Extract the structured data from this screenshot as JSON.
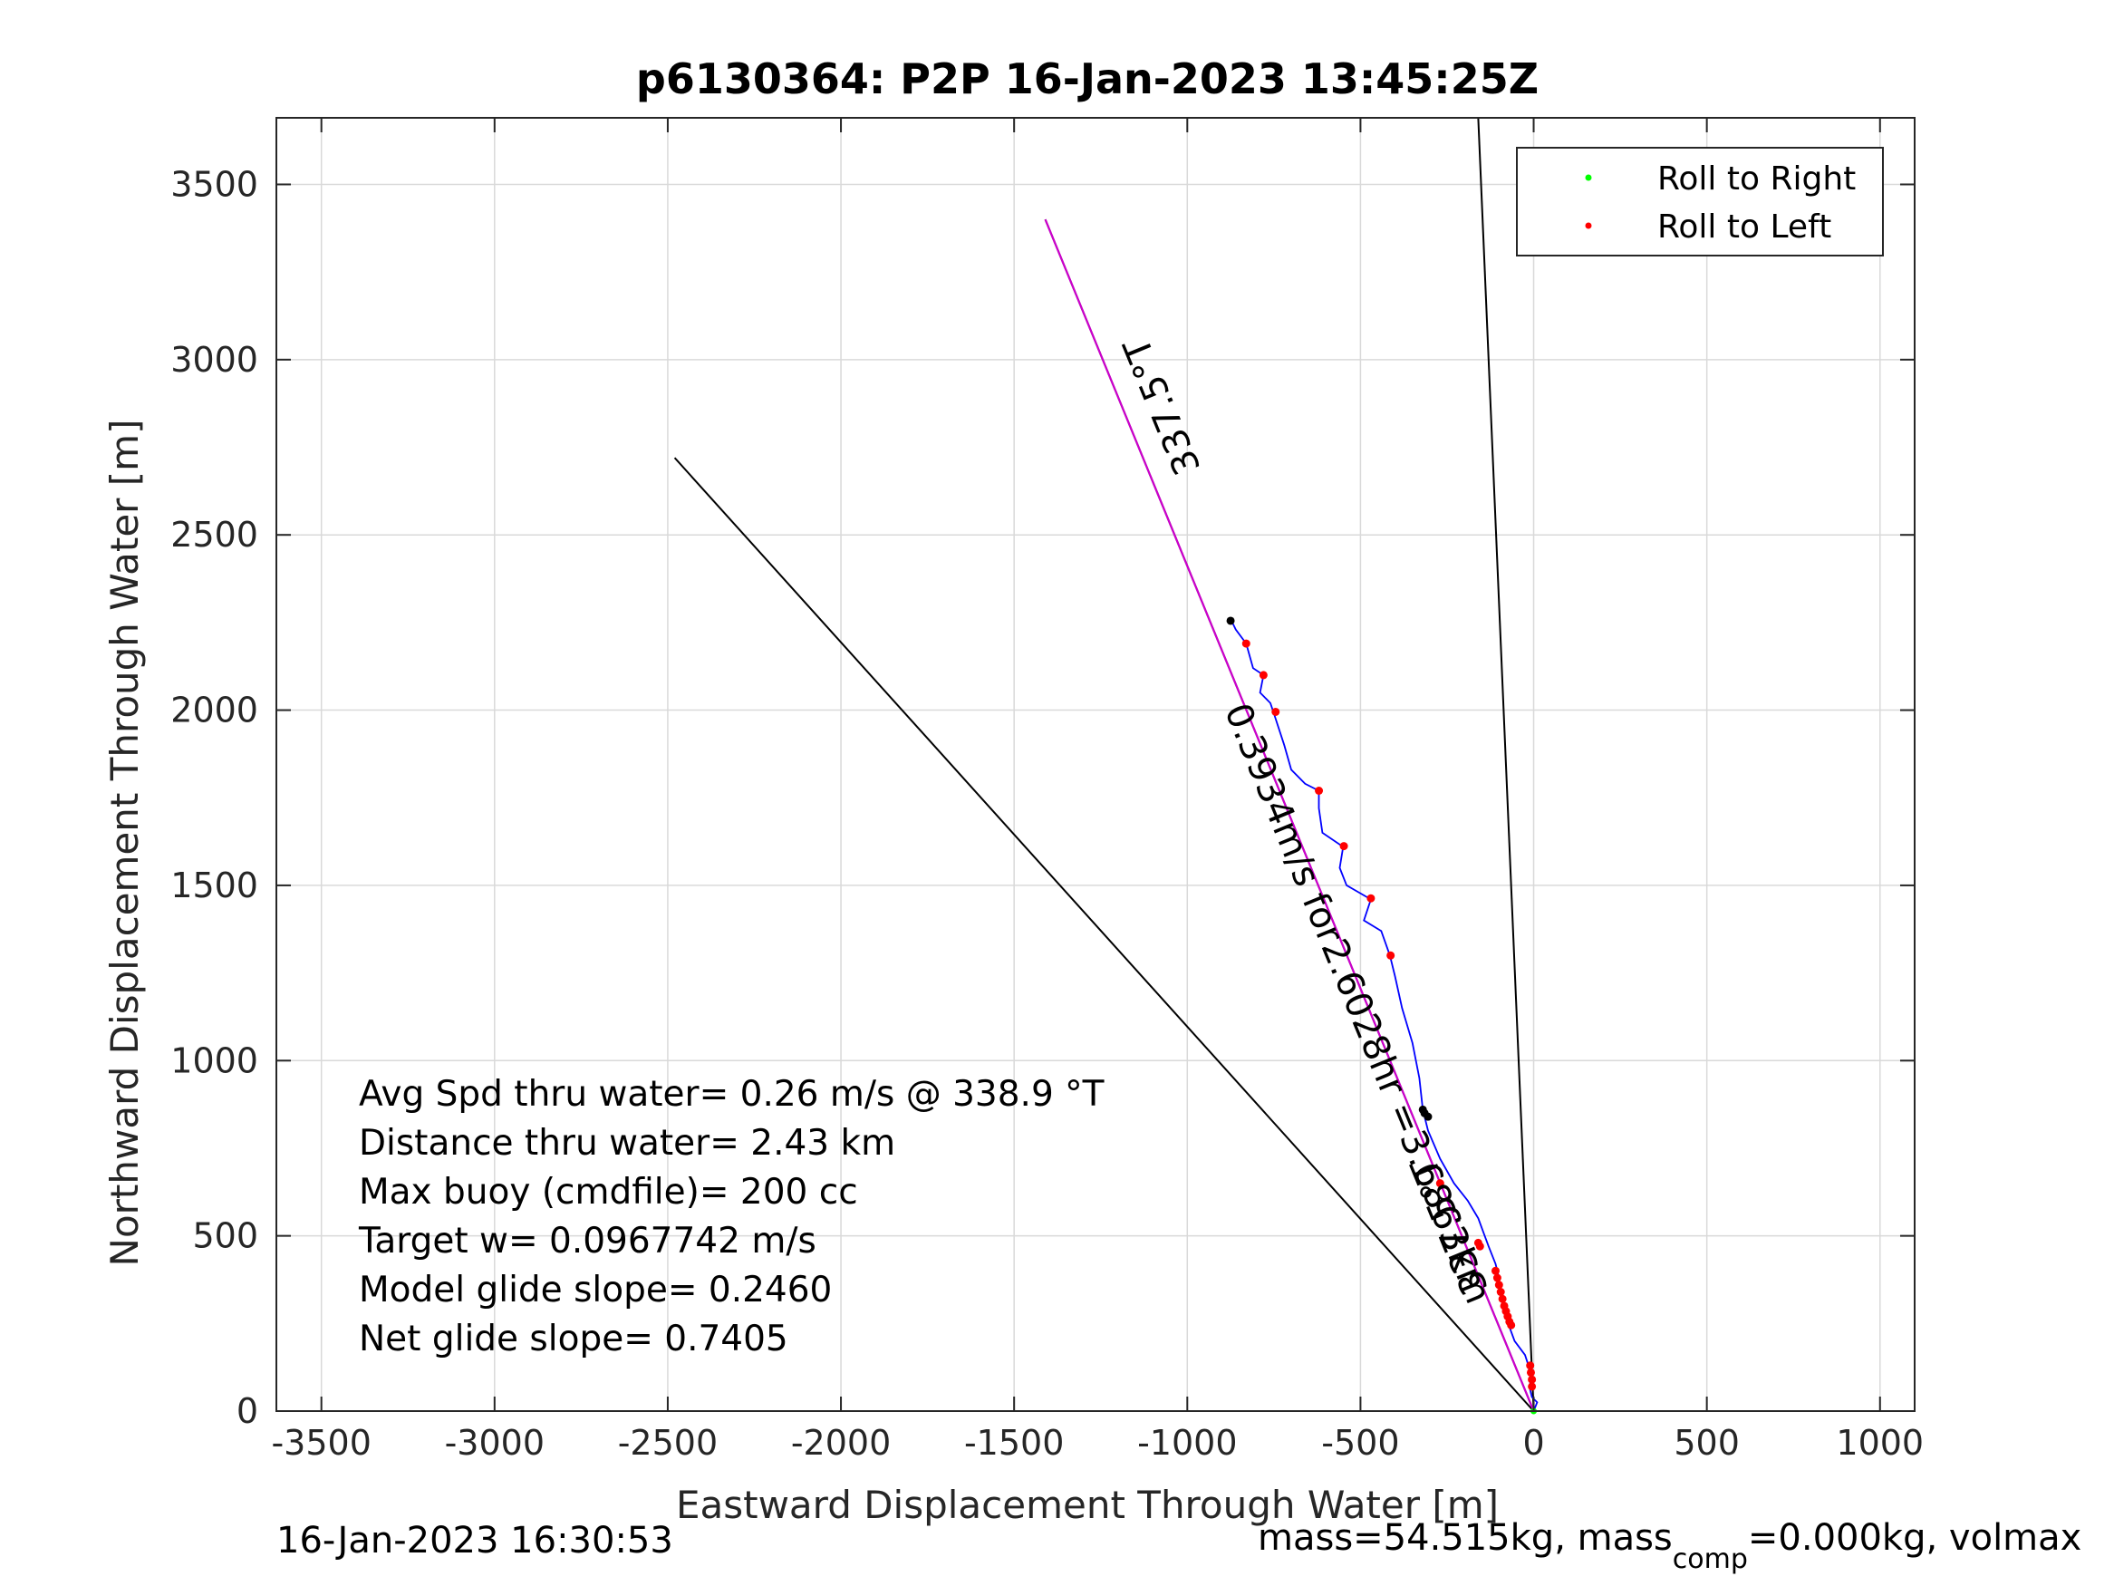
{
  "chart_data": {
    "type": "line",
    "title": "p6130364: P2P 16-Jan-2023 13:45:25Z",
    "xlabel": "Eastward Displacement Through Water [m]",
    "ylabel": "Northward Displacement Through Water [m]",
    "xlim": [
      -3630,
      1100
    ],
    "ylim": [
      0,
      3690
    ],
    "x_ticks": [
      -3500,
      -3000,
      -2500,
      -2000,
      -1500,
      -1000,
      -500,
      0,
      500,
      1000
    ],
    "y_ticks": [
      0,
      500,
      1000,
      1500,
      2000,
      2500,
      3000,
      3500
    ],
    "grid": true,
    "legend": {
      "placement": "top-right",
      "entries": [
        {
          "label": "Roll to Right",
          "color": "#00ff00"
        },
        {
          "label": "Roll to Left",
          "color": "#ff0000"
        }
      ]
    },
    "colors": {
      "track": "#0000ff",
      "course": "#cc00cc",
      "reference": "#000000",
      "dive_start": "#000000"
    },
    "reference_lines": [
      {
        "points": [
          [
            0,
            0
          ],
          [
            -2480,
            2720
          ]
        ]
      },
      {
        "points": [
          [
            0,
            0
          ],
          [
            -160,
            3690
          ]
        ]
      },
      {
        "points": [
          [
            0,
            0
          ],
          [
            -1410,
            3400
          ]
        ]
      }
    ],
    "course_line": {
      "points": [
        [
          0,
          0
        ],
        [
          -1410,
          3400
        ]
      ]
    },
    "track": [
      [
        0,
        0
      ],
      [
        10,
        25
      ],
      [
        -5,
        40
      ],
      [
        -10,
        60
      ],
      [
        -10,
        100
      ],
      [
        -15,
        130
      ],
      [
        -25,
        160
      ],
      [
        -55,
        200
      ],
      [
        -70,
        240
      ],
      [
        -80,
        280
      ],
      [
        -95,
        330
      ],
      [
        -100,
        380
      ],
      [
        -110,
        420
      ],
      [
        -130,
        470
      ],
      [
        -145,
        510
      ],
      [
        -160,
        550
      ],
      [
        -190,
        600
      ],
      [
        -230,
        650
      ],
      [
        -270,
        720
      ],
      [
        -305,
        800
      ],
      [
        -320,
        860
      ],
      [
        -330,
        950
      ],
      [
        -350,
        1050
      ],
      [
        -380,
        1150
      ],
      [
        -400,
        1240
      ],
      [
        -415,
        1300
      ],
      [
        -440,
        1370
      ],
      [
        -490,
        1400
      ],
      [
        -470,
        1460
      ],
      [
        -540,
        1500
      ],
      [
        -560,
        1550
      ],
      [
        -550,
        1610
      ],
      [
        -610,
        1650
      ],
      [
        -620,
        1720
      ],
      [
        -620,
        1770
      ],
      [
        -660,
        1790
      ],
      [
        -700,
        1830
      ],
      [
        -720,
        1900
      ],
      [
        -750,
        1990
      ],
      [
        -760,
        2020
      ],
      [
        -790,
        2050
      ],
      [
        -780,
        2100
      ],
      [
        -810,
        2120
      ],
      [
        -830,
        2190
      ],
      [
        -860,
        2230
      ],
      [
        -875,
        2260
      ]
    ],
    "roll_to_left_points": [
      [
        -830,
        2190
      ],
      [
        -780,
        2100
      ],
      [
        -745,
        1995
      ],
      [
        -620,
        1770
      ],
      [
        -548,
        1612
      ],
      [
        -470,
        1463
      ],
      [
        -413,
        1300
      ],
      [
        -270,
        650
      ],
      [
        -160,
        480
      ],
      [
        -155,
        470
      ],
      [
        -110,
        400
      ],
      [
        -105,
        380
      ],
      [
        -100,
        360
      ],
      [
        -95,
        340
      ],
      [
        -90,
        320
      ],
      [
        -85,
        300
      ],
      [
        -80,
        285
      ],
      [
        -75,
        270
      ],
      [
        -70,
        255
      ],
      [
        -65,
        245
      ],
      [
        -10,
        130
      ],
      [
        -8,
        110
      ],
      [
        -5,
        90
      ],
      [
        -5,
        70
      ]
    ],
    "roll_to_right_points": [
      [
        0,
        0
      ]
    ],
    "dive_start_points": [
      [
        -875,
        2255
      ],
      [
        -320,
        860
      ],
      [
        -315,
        850
      ],
      [
        -305,
        840
      ]
    ],
    "annotations": [
      {
        "text": "337.5°T",
        "position": "upper course line"
      },
      {
        "text": "0.3934m/s for2.6028hr =3.6863km",
        "position": "along course line"
      },
      {
        "text": "337.5°T",
        "position": "lower course line"
      }
    ],
    "info_box": [
      "Avg Spd thru water=  0.26 m/s @ 338.9 °T",
      "Distance thru water=  2.43 km",
      "Max buoy (cmdfile)= 200 cc",
      "Target w= 0.0967742 m/s",
      "Model glide slope= 0.2460",
      "Net glide slope= 0.7405"
    ]
  },
  "footer": {
    "date": "16-Jan-2023 16:30:53",
    "mass_prefix": "mass=54.515kg, mass",
    "mass_sub": "comp",
    "mass_suffix": "=0.000kg, volmax"
  }
}
